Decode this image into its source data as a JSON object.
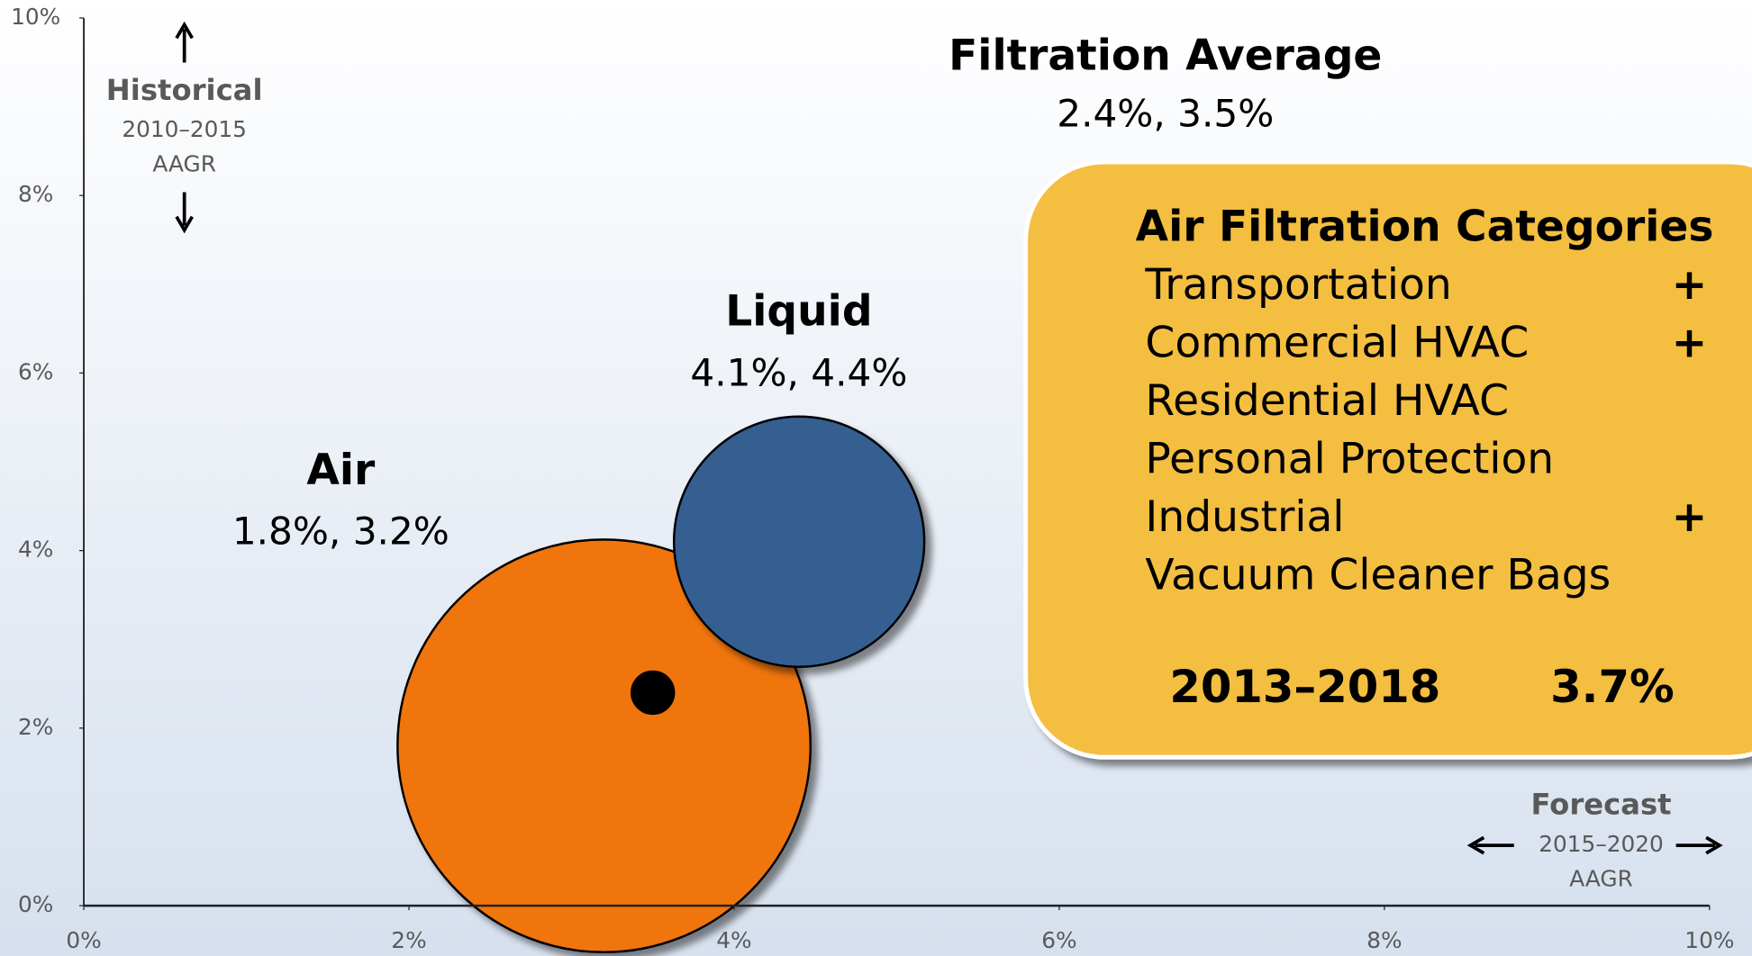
{
  "chart_data": {
    "type": "bubble",
    "xlim": [
      0,
      10
    ],
    "xticks": [
      {
        "value": 0,
        "label": "0%"
      },
      {
        "value": 2,
        "label": "2%"
      },
      {
        "value": 4,
        "label": "4%"
      },
      {
        "value": 6,
        "label": "6%"
      },
      {
        "value": 8,
        "label": "8%"
      },
      {
        "value": 10,
        "label": "10%"
      }
    ],
    "ylim": [
      0,
      10
    ],
    "yticks": [
      {
        "value": 0,
        "label": "0%"
      },
      {
        "value": 2,
        "label": "2%"
      },
      {
        "value": 4,
        "label": "4%"
      },
      {
        "value": 6,
        "label": "6%"
      },
      {
        "value": 8,
        "label": "8%"
      },
      {
        "value": 10,
        "label": "10%"
      }
    ],
    "y_axis_label": {
      "title": "Historical",
      "period": "2010–2015",
      "measure": "AAGR"
    },
    "x_axis_label": {
      "title": "Forecast",
      "period": "2015–2020",
      "measure": "AAGR"
    },
    "series": [
      {
        "name": "Air",
        "color": "#f07510",
        "x": [
          3.2
        ],
        "values": [
          1.8
        ],
        "sizes": [
          1.27
        ],
        "value_labels": [
          "1.8%, 3.2%"
        ]
      },
      {
        "name": "Liquid",
        "color": "#365f91",
        "x": [
          4.4
        ],
        "values": [
          4.1
        ],
        "sizes": [
          0.77
        ],
        "value_labels": [
          "4.1%, 4.4%"
        ]
      },
      {
        "name": "Filtration Average",
        "color": "#000000",
        "x": [
          3.5
        ],
        "values": [
          2.4
        ],
        "sizes": [
          0.13
        ],
        "value_labels": [
          "2.4%, 3.5%"
        ]
      }
    ],
    "panel": {
      "title": "Air Filtration Categories",
      "items": [
        {
          "name": "Transportation",
          "mark": "+"
        },
        {
          "name": "Commercial HVAC",
          "mark": "+"
        },
        {
          "name": "Residential HVAC"
        },
        {
          "name": "Personal Protection"
        },
        {
          "name": "Industrial",
          "mark": "+"
        },
        {
          "name": "Vacuum Cleaner Bags"
        }
      ],
      "period": "2013–2018",
      "rate": "3.7%"
    }
  }
}
